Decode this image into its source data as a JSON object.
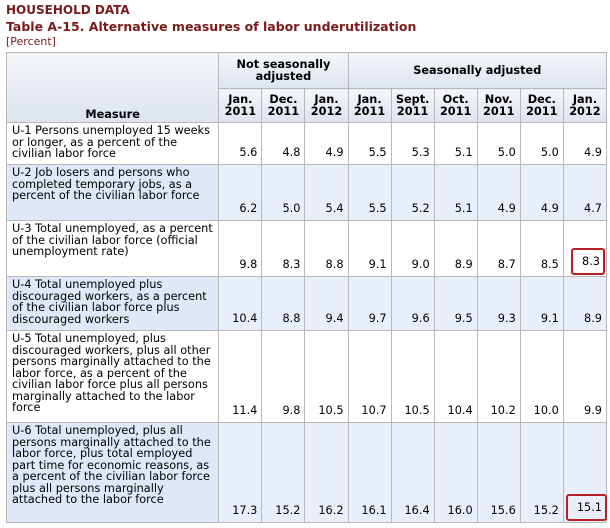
{
  "header": {
    "section": "HOUSEHOLD DATA",
    "title": "Table A-15. Alternative measures of labor underutilization",
    "unit": "[Percent]"
  },
  "table": {
    "measure_header": "Measure",
    "groups": [
      {
        "label": "Not seasonally adjusted",
        "span": 3
      },
      {
        "label": "Seasonally adjusted",
        "span": 6
      }
    ],
    "columns": [
      {
        "month": "Jan.",
        "year": "2011"
      },
      {
        "month": "Dec.",
        "year": "2011"
      },
      {
        "month": "Jan.",
        "year": "2012"
      },
      {
        "month": "Jan.",
        "year": "2011"
      },
      {
        "month": "Sept.",
        "year": "2011"
      },
      {
        "month": "Oct.",
        "year": "2011"
      },
      {
        "month": "Nov.",
        "year": "2011"
      },
      {
        "month": "Dec.",
        "year": "2011"
      },
      {
        "month": "Jan.",
        "year": "2012"
      }
    ],
    "rows": [
      {
        "label": "U-1 Persons unemployed 15 weeks or longer, as a percent of the civilian labor force",
        "values": [
          "5.6",
          "4.8",
          "4.9",
          "5.5",
          "5.3",
          "5.1",
          "5.0",
          "5.0",
          "4.9"
        ]
      },
      {
        "label": "U-2 Job losers and persons who completed temporary jobs, as a percent of the civilian labor force",
        "values": [
          "6.2",
          "5.0",
          "5.4",
          "5.5",
          "5.2",
          "5.1",
          "4.9",
          "4.9",
          "4.7"
        ]
      },
      {
        "label": "U-3 Total unemployed, as a percent of the civilian labor force (official unemployment rate)",
        "values": [
          "9.8",
          "8.3",
          "8.8",
          "9.1",
          "9.0",
          "8.9",
          "8.7",
          "8.5",
          "8.3"
        ]
      },
      {
        "label": "U-4 Total unemployed plus discouraged workers, as a percent of the civilian labor force plus discouraged workers",
        "values": [
          "10.4",
          "8.8",
          "9.4",
          "9.7",
          "9.6",
          "9.5",
          "9.3",
          "9.1",
          "8.9"
        ]
      },
      {
        "label": "U-5 Total unemployed, plus discouraged workers, plus all other persons marginally attached to the labor force, as a percent of the civilian labor force plus all persons marginally attached to the labor force",
        "values": [
          "11.4",
          "9.8",
          "10.5",
          "10.7",
          "10.5",
          "10.4",
          "10.2",
          "10.0",
          "9.9"
        ]
      },
      {
        "label": "U-6 Total unemployed, plus all persons marginally attached to the labor force, plus total employed part time for economic reasons, as a percent of the civilian labor force plus all persons marginally attached to the labor force",
        "values": [
          "17.3",
          "15.2",
          "16.2",
          "16.1",
          "16.4",
          "16.0",
          "15.6",
          "15.2",
          "15.1"
        ]
      }
    ]
  }
}
